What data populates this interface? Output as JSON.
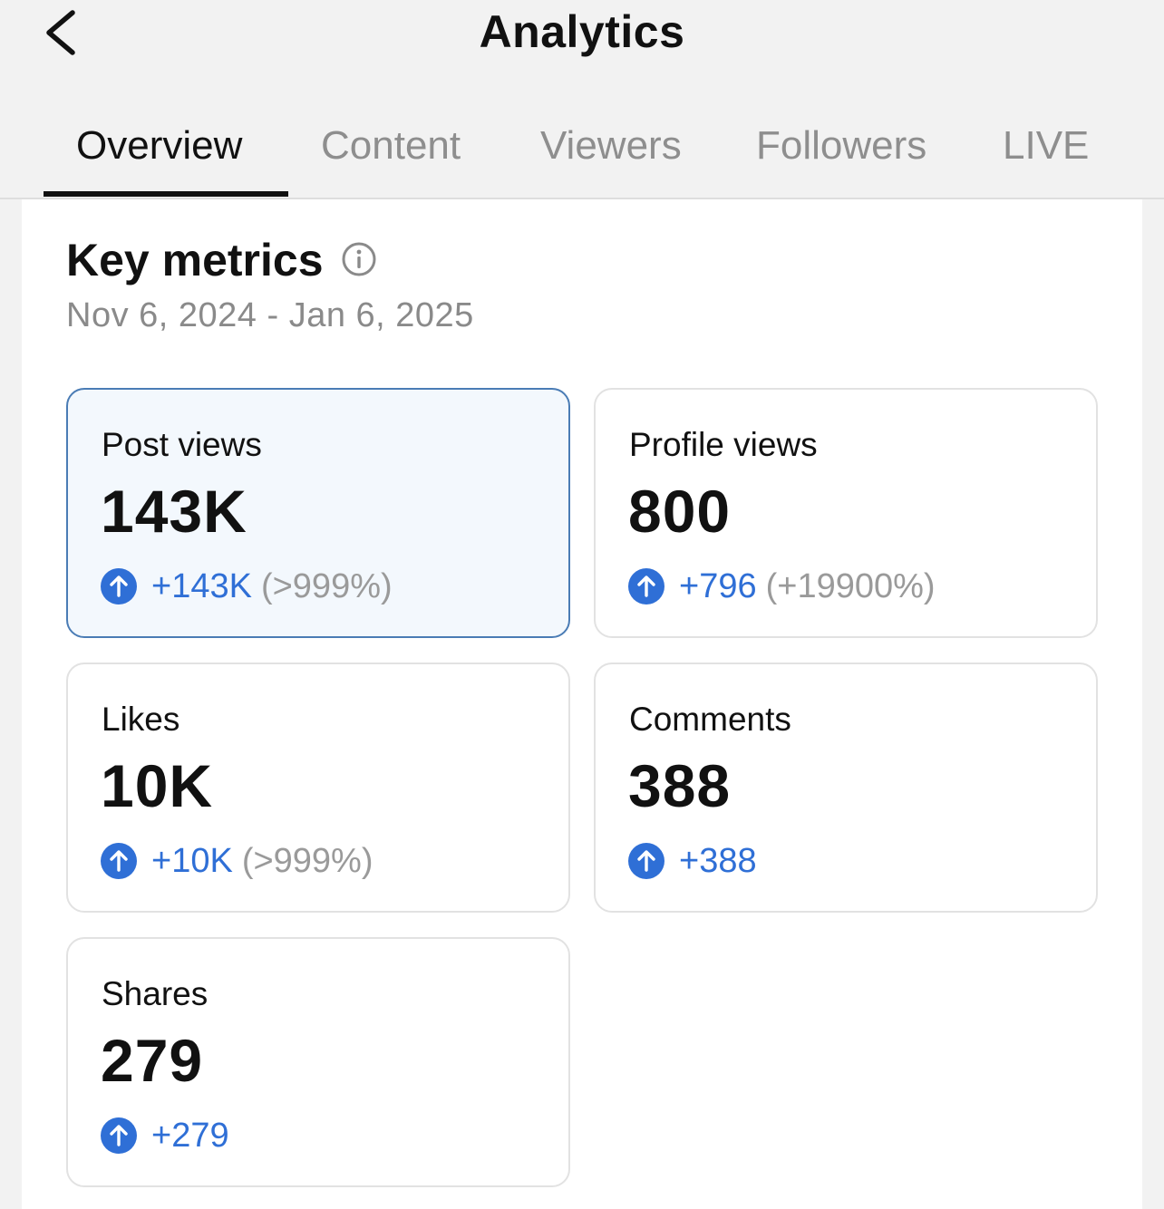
{
  "header": {
    "title": "Analytics"
  },
  "tabs": [
    {
      "label": "Overview",
      "active": true
    },
    {
      "label": "Content",
      "active": false
    },
    {
      "label": "Viewers",
      "active": false
    },
    {
      "label": "Followers",
      "active": false
    },
    {
      "label": "LIVE",
      "active": false
    }
  ],
  "key_metrics": {
    "title": "Key metrics",
    "date_range": "Nov 6, 2024 - Jan 6, 2025",
    "cards": [
      {
        "label": "Post views",
        "value": "143K",
        "delta": "+143K",
        "percent": "(>999%)",
        "selected": true
      },
      {
        "label": "Profile views",
        "value": "800",
        "delta": "+796",
        "percent": "(+19900%)",
        "selected": false
      },
      {
        "label": "Likes",
        "value": "10K",
        "delta": "+10K",
        "percent": "(>999%)",
        "selected": false
      },
      {
        "label": "Comments",
        "value": "388",
        "delta": "+388",
        "percent": "",
        "selected": false
      },
      {
        "label": "Shares",
        "value": "279",
        "delta": "+279",
        "percent": "",
        "selected": false
      }
    ]
  },
  "icons": {
    "back": "chevron-left-icon",
    "info": "info-icon",
    "trend": "arrow-up-circle-icon"
  },
  "colors": {
    "accent_blue": "#2f6fd6",
    "selected_border": "#4a7cb5",
    "selected_bg": "#f3f8fd",
    "muted_text": "#8a8a8a"
  }
}
